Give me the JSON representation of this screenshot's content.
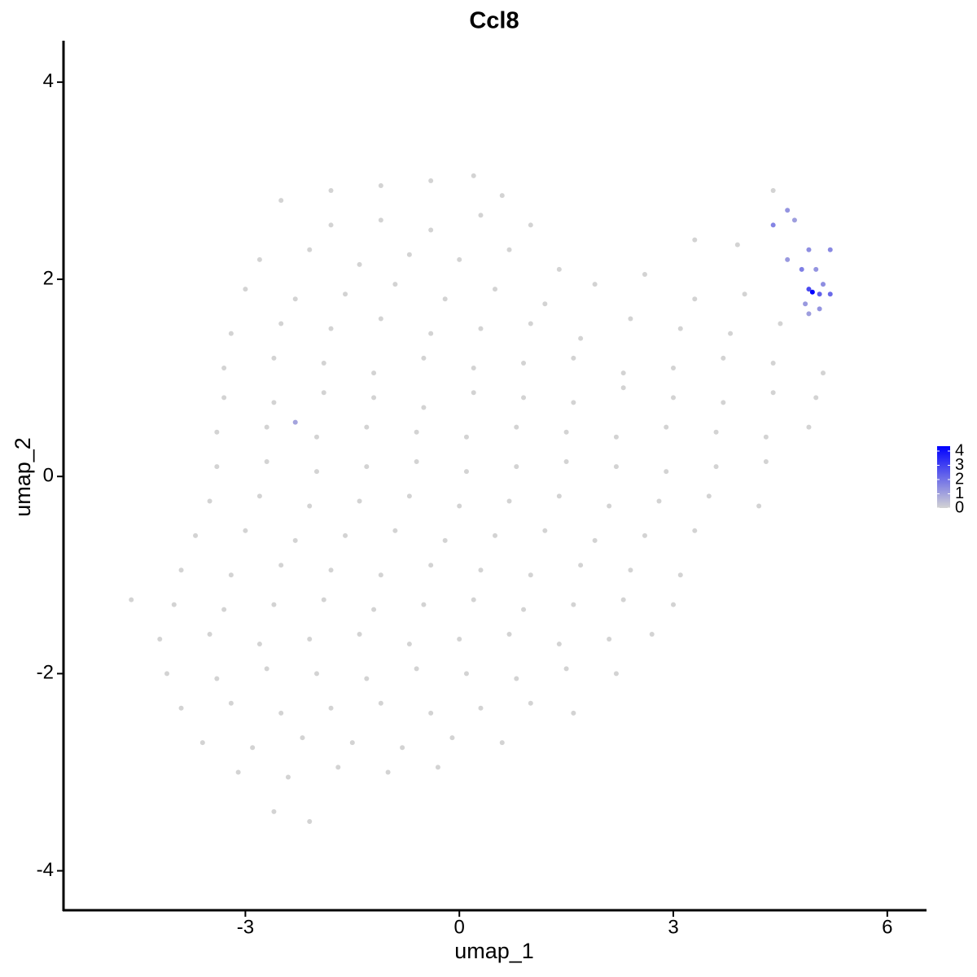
{
  "chart_data": {
    "type": "scatter",
    "title": "Ccl8",
    "x_label": "umap_1",
    "y_label": "umap_2",
    "xlim": [
      -5.55,
      6.55
    ],
    "ylim": [
      -4.4,
      4.42
    ],
    "xticks": [
      -3,
      0,
      3,
      6
    ],
    "yticks": [
      -4,
      -2,
      0,
      2,
      4
    ],
    "color_scale": {
      "low": "#d3d3d3",
      "high": "#0000ff",
      "lim": [
        0,
        4
      ],
      "ticks": [
        0,
        1,
        2,
        3,
        4
      ]
    },
    "series": [
      {
        "color": "#d3d3d3",
        "x": [
          -1.8,
          -1.1,
          -0.4,
          0.2,
          0.6,
          -2.5,
          -1.8,
          -1.1,
          -0.4,
          0.3,
          1.0,
          4.4,
          -2.8,
          -2.1,
          -1.4,
          -0.7,
          0.0,
          0.7,
          1.4,
          3.3,
          3.9,
          -3.0,
          -2.3,
          -1.6,
          -0.9,
          -0.2,
          0.5,
          1.2,
          1.9,
          2.6,
          3.3,
          4.0,
          -3.2,
          -2.5,
          -1.8,
          -1.1,
          -0.4,
          0.3,
          1.0,
          1.7,
          2.4,
          3.1,
          3.8,
          4.5,
          -3.3,
          -2.6,
          -1.9,
          -1.2,
          -0.5,
          0.2,
          0.9,
          1.6,
          2.3,
          3.0,
          3.7,
          4.4,
          5.1,
          -3.3,
          -2.6,
          -1.9,
          -1.2,
          -0.5,
          0.2,
          0.9,
          1.6,
          2.3,
          3.0,
          3.7,
          4.4,
          5.0,
          -3.4,
          -2.7,
          -2.0,
          -1.3,
          -0.6,
          0.1,
          0.8,
          1.5,
          2.2,
          2.9,
          3.6,
          4.3,
          4.9,
          -3.4,
          -2.7,
          -2.0,
          -1.3,
          -0.6,
          0.1,
          0.8,
          1.5,
          2.2,
          2.9,
          3.6,
          4.3,
          -3.5,
          -2.8,
          -2.1,
          -1.4,
          -0.7,
          0.0,
          0.7,
          1.4,
          2.1,
          2.8,
          3.5,
          4.2,
          -3.7,
          -3.0,
          -2.3,
          -1.6,
          -0.9,
          -0.2,
          0.5,
          1.2,
          1.9,
          2.6,
          3.3,
          -3.9,
          -3.2,
          -2.5,
          -1.8,
          -1.1,
          -0.4,
          0.3,
          1.0,
          1.7,
          2.4,
          3.1,
          -4.6,
          -4.0,
          -3.3,
          -2.6,
          -1.9,
          -1.2,
          -0.5,
          0.2,
          0.9,
          1.6,
          2.3,
          3.0,
          -4.2,
          -3.5,
          -2.8,
          -2.1,
          -1.4,
          -0.7,
          0.0,
          0.7,
          1.4,
          2.1,
          2.7,
          -4.1,
          -3.4,
          -2.7,
          -2.0,
          -1.3,
          -0.6,
          0.1,
          0.8,
          1.5,
          2.2,
          -3.9,
          -3.2,
          -2.5,
          -1.8,
          -1.1,
          -0.4,
          0.3,
          1.0,
          1.6,
          -3.6,
          -2.9,
          -2.2,
          -1.5,
          -0.8,
          -0.1,
          0.6,
          -3.1,
          -2.4,
          -1.7,
          -1.0,
          -0.3,
          -2.6,
          -2.1
        ],
        "values": [
          2.9,
          2.95,
          3.0,
          3.05,
          2.85,
          2.8,
          2.55,
          2.6,
          2.5,
          2.65,
          2.55,
          2.9,
          2.2,
          2.3,
          2.15,
          2.25,
          2.2,
          2.3,
          2.1,
          2.4,
          2.35,
          1.9,
          1.8,
          1.85,
          1.95,
          1.8,
          1.9,
          1.75,
          1.95,
          2.05,
          1.8,
          1.85,
          1.45,
          1.55,
          1.5,
          1.6,
          1.45,
          1.5,
          1.55,
          1.4,
          1.6,
          1.5,
          1.45,
          1.55,
          1.1,
          1.2,
          1.15,
          1.05,
          1.2,
          1.1,
          1.15,
          1.2,
          1.05,
          1.1,
          1.2,
          1.15,
          1.05,
          0.8,
          0.75,
          0.85,
          0.8,
          0.7,
          0.85,
          0.8,
          0.75,
          0.9,
          0.8,
          0.75,
          0.85,
          0.8,
          0.45,
          0.5,
          0.4,
          0.5,
          0.45,
          0.4,
          0.5,
          0.45,
          0.4,
          0.5,
          0.45,
          0.4,
          0.5,
          0.1,
          0.15,
          0.05,
          0.1,
          0.15,
          0.05,
          0.1,
          0.15,
          0.1,
          0.05,
          0.1,
          0.15,
          -0.25,
          -0.2,
          -0.3,
          -0.25,
          -0.2,
          -0.3,
          -0.25,
          -0.2,
          -0.3,
          -0.25,
          -0.2,
          -0.3,
          -0.6,
          -0.55,
          -0.65,
          -0.6,
          -0.55,
          -0.65,
          -0.6,
          -0.55,
          -0.65,
          -0.6,
          -0.55,
          -0.95,
          -1.0,
          -0.9,
          -0.95,
          -1.0,
          -0.9,
          -0.95,
          -1.0,
          -0.9,
          -0.95,
          -1.0,
          -1.25,
          -1.3,
          -1.35,
          -1.3,
          -1.25,
          -1.35,
          -1.3,
          -1.25,
          -1.35,
          -1.3,
          -1.25,
          -1.3,
          -1.65,
          -1.6,
          -1.7,
          -1.65,
          -1.6,
          -1.7,
          -1.65,
          -1.6,
          -1.7,
          -1.65,
          -1.6,
          -2.0,
          -2.05,
          -1.95,
          -2.0,
          -2.05,
          -1.95,
          -2.0,
          -2.05,
          -1.95,
          -2.0,
          -2.35,
          -2.3,
          -2.4,
          -2.35,
          -2.3,
          -2.4,
          -2.35,
          -2.3,
          -2.4,
          -2.7,
          -2.75,
          -2.65,
          -2.7,
          -2.75,
          -2.65,
          -2.7,
          -3.0,
          -3.05,
          -2.95,
          -3.0,
          -2.95,
          -3.4,
          -3.5
        ]
      },
      {
        "x": [
          4.4,
          4.6,
          4.7,
          4.9,
          5.2,
          4.6,
          4.8,
          5.0,
          4.9,
          4.95,
          5.05,
          5.2,
          4.85,
          5.05,
          4.9,
          5.1,
          -2.3
        ],
        "values": [
          2.55,
          2.7,
          2.6,
          2.3,
          2.3,
          2.2,
          2.1,
          2.1,
          1.9,
          1.87,
          1.85,
          1.85,
          1.75,
          1.7,
          1.65,
          1.95,
          0.55
        ],
        "expression": [
          1.5,
          1.2,
          1.0,
          1.3,
          1.4,
          1.1,
          1.6,
          1.2,
          2.6,
          4.0,
          2.2,
          2.0,
          1.1,
          1.2,
          1.0,
          1.3,
          0.9
        ]
      }
    ]
  }
}
